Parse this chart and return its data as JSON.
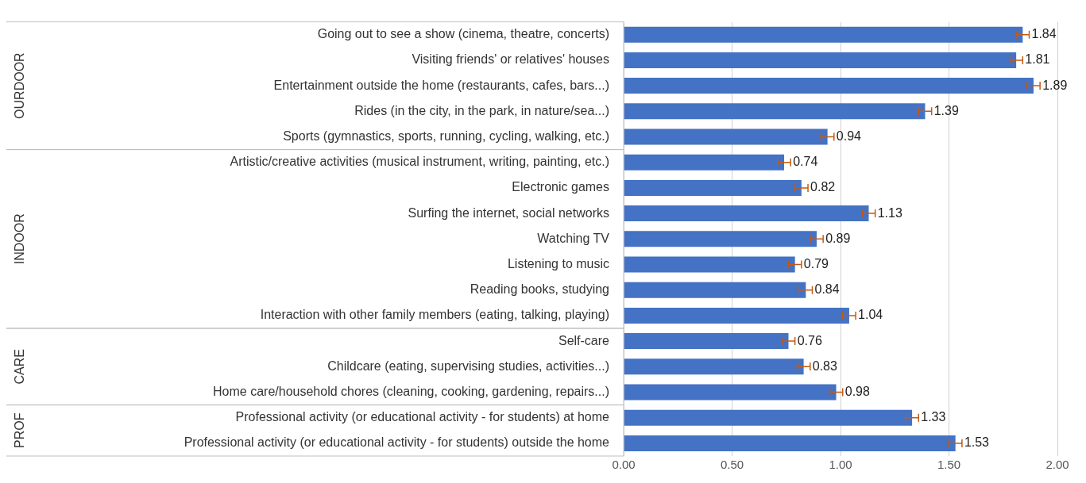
{
  "chart_data": {
    "type": "bar",
    "orientation": "horizontal",
    "categories": [
      "Going out to see a show (cinema, theatre, concerts)",
      "Visiting friends' or relatives' houses",
      "Entertainment outside the home (restaurants, cafes, bars...)",
      "Rides (in the city, in the park, in nature/sea...)",
      "Sports (gymnastics, sports, running, cycling, walking, etc.)",
      "Artistic/creative activities (musical instrument, writing, painting, etc.)",
      "Electronic games",
      "Surfing the internet, social networks",
      "Watching TV",
      "Listening to music",
      "Reading books, studying",
      "Interaction with other family members (eating, talking, playing)",
      "Self-care",
      "Childcare (eating, supervising studies, activities...)",
      "Home care/household chores (cleaning, cooking, gardening, repairs...)",
      "Professional activity (or educational activity - for students) at home",
      "Professional activity (or educational activity - for students) outside the home"
    ],
    "values": [
      1.84,
      1.81,
      1.89,
      1.39,
      0.94,
      0.74,
      0.82,
      1.13,
      0.89,
      0.79,
      0.84,
      1.04,
      0.76,
      0.83,
      0.98,
      1.33,
      1.53
    ],
    "errors": [
      0.03,
      0.03,
      0.03,
      0.03,
      0.03,
      0.03,
      0.03,
      0.03,
      0.03,
      0.03,
      0.03,
      0.03,
      0.03,
      0.03,
      0.03,
      0.03,
      0.03
    ],
    "color": "#4472c4",
    "xlim": [
      0,
      2
    ],
    "xticks": [
      {
        "value": 0,
        "label": "0.00"
      },
      {
        "value": 0.5,
        "label": "0.50"
      },
      {
        "value": 1,
        "label": "1.00"
      },
      {
        "value": 1.5,
        "label": "1.50"
      },
      {
        "value": 2,
        "label": "2.00"
      }
    ],
    "grid": "x",
    "legend": false,
    "data_labels": true,
    "annotations": [
      "OURDOOR",
      "INDOOR",
      "CARE",
      "PROF"
    ]
  }
}
